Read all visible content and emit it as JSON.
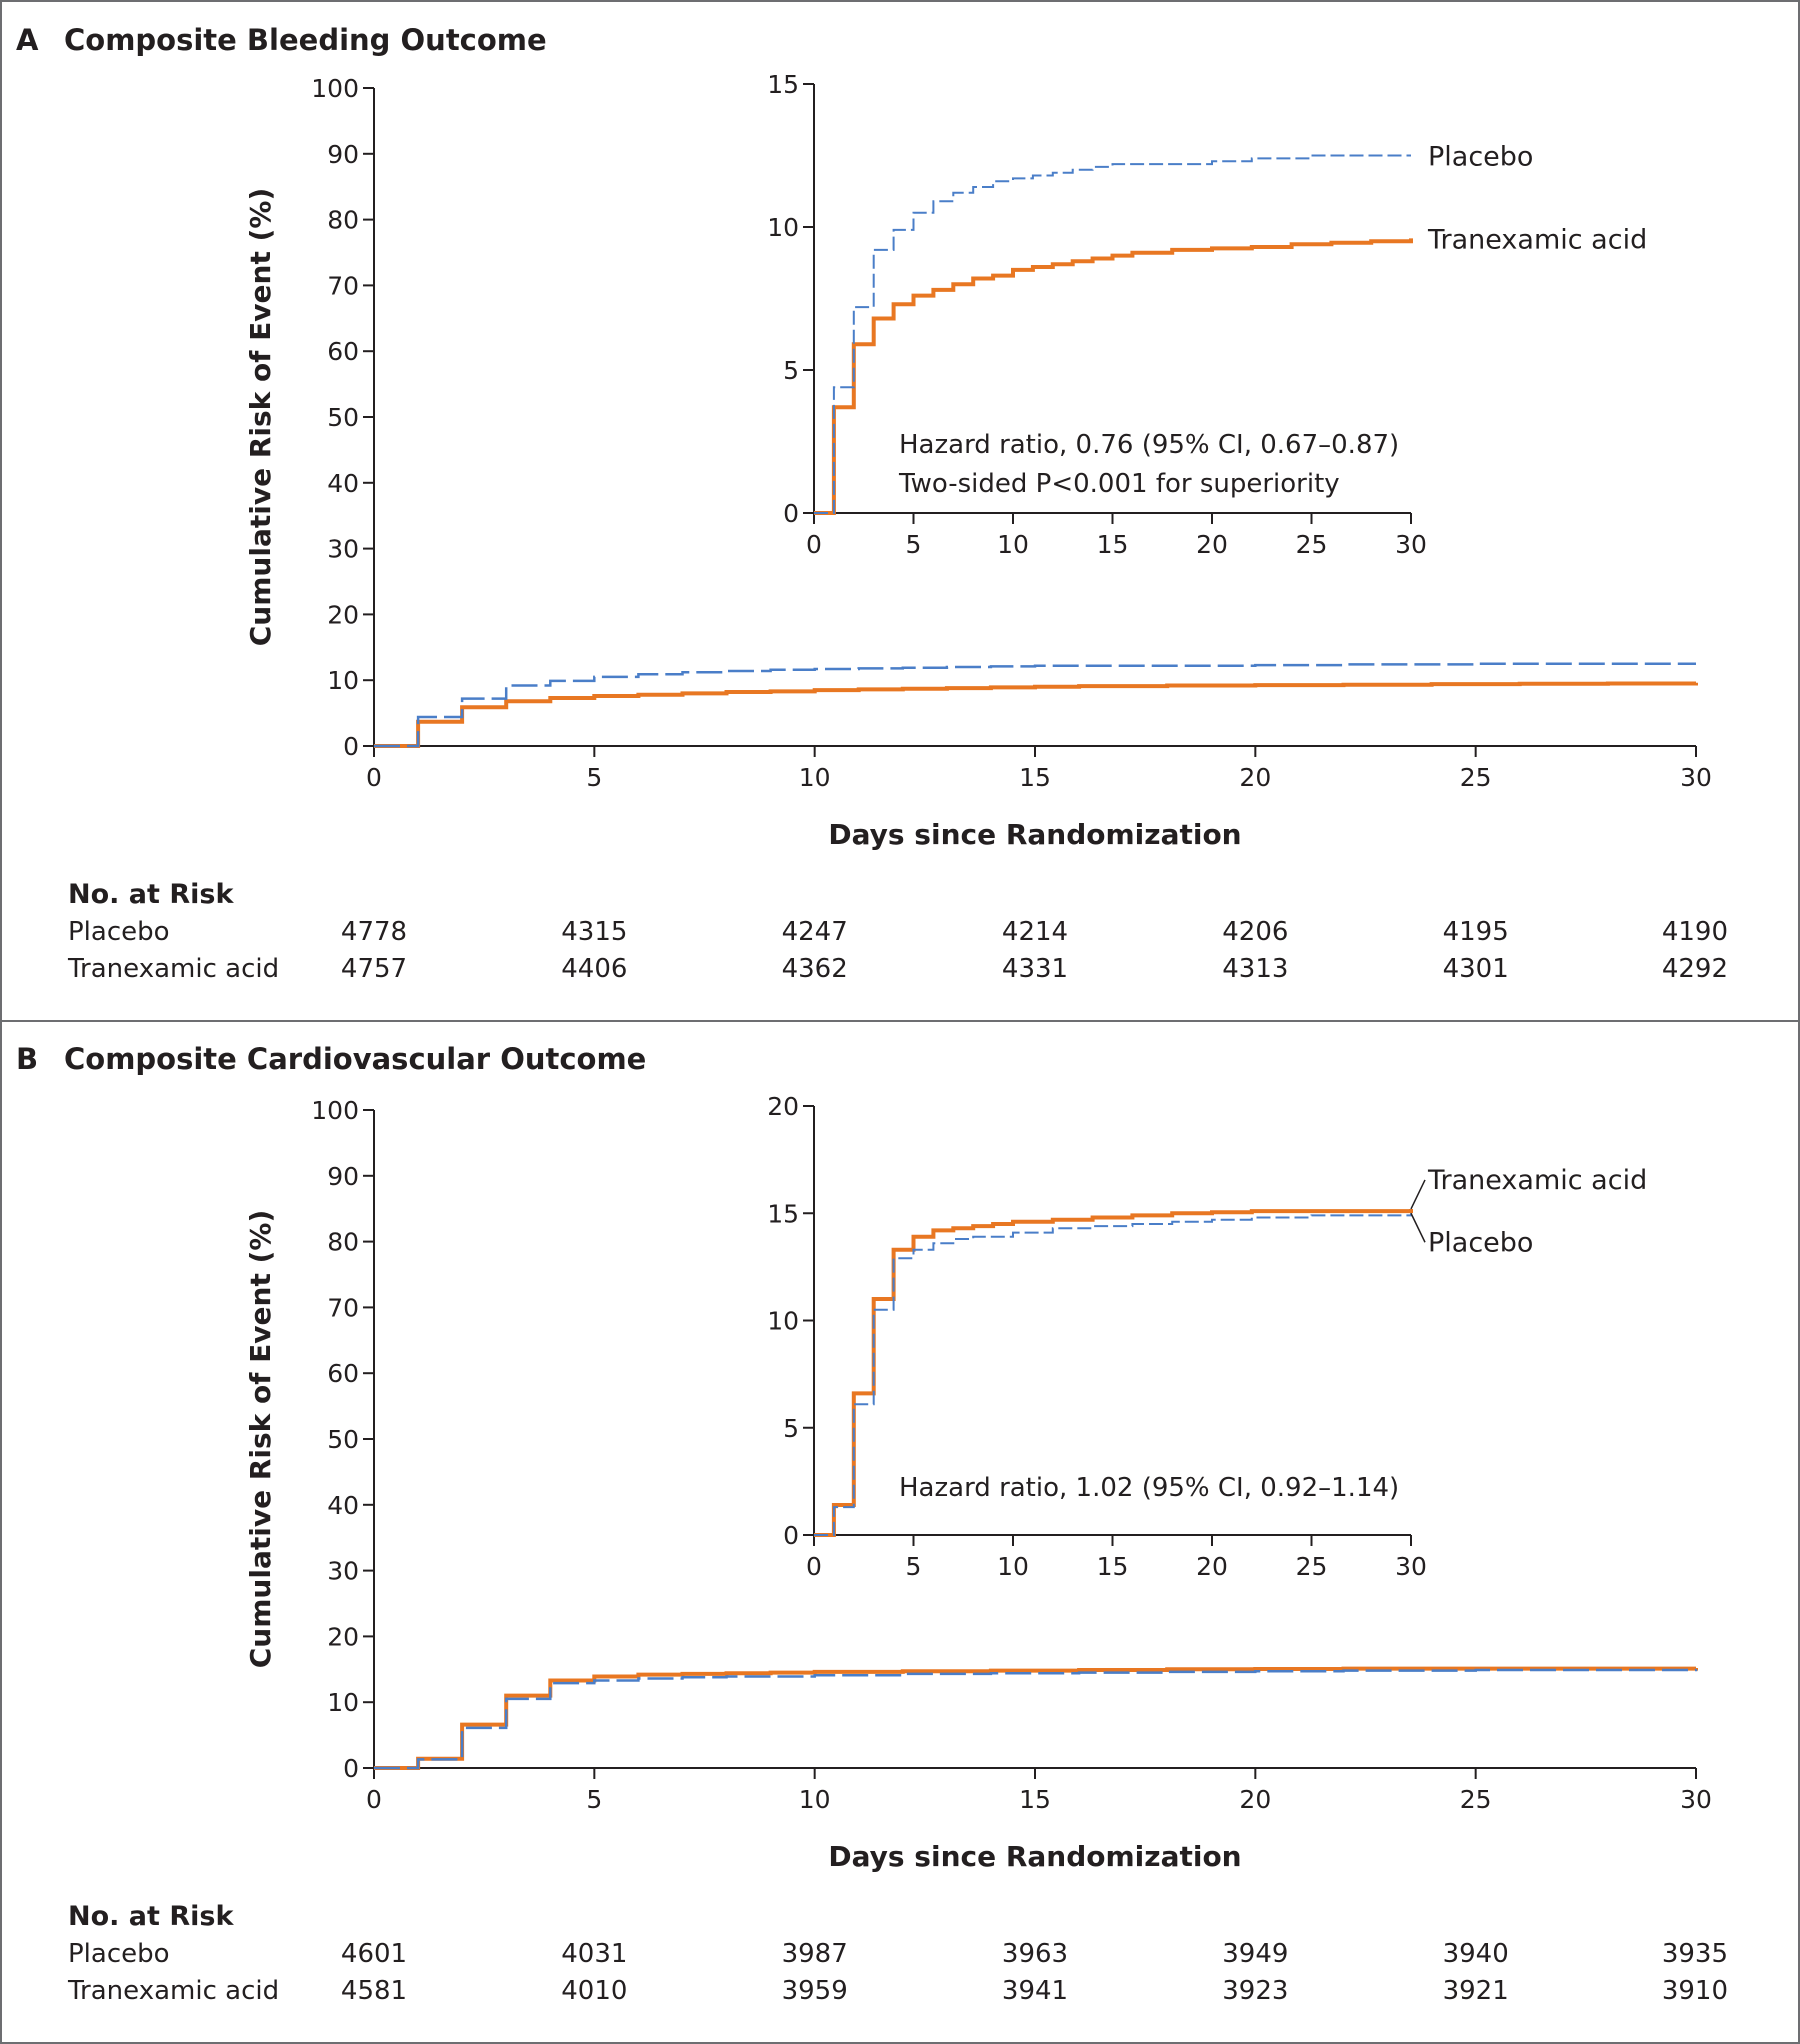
{
  "colors": {
    "placebo": "#4a7ec8",
    "tranexamic": "#e87722",
    "axis": "#231f20",
    "frame": "#6d6e71"
  },
  "chart_data": [
    {
      "panel": "A",
      "title": "Composite Bleeding Outcome",
      "type": "line",
      "xlabel": "Days since Randomization",
      "ylabel": "Cumulative Risk of Event (%)",
      "xlim": [
        0,
        30
      ],
      "ylim": [
        0,
        100
      ],
      "xticks": [
        0,
        5,
        10,
        15,
        20,
        25,
        30
      ],
      "yticks": [
        0,
        10,
        20,
        30,
        40,
        50,
        60,
        70,
        80,
        90,
        100
      ],
      "series": [
        {
          "name": "Placebo",
          "style": "dashed",
          "x": [
            0,
            1,
            2,
            3,
            4,
            5,
            6,
            7,
            8,
            9,
            10,
            11,
            12,
            13,
            14,
            15,
            17,
            20,
            22,
            25,
            30
          ],
          "y": [
            0,
            4.4,
            7.2,
            9.2,
            9.9,
            10.5,
            10.9,
            11.2,
            11.4,
            11.6,
            11.7,
            11.8,
            11.9,
            12.0,
            12.1,
            12.2,
            12.2,
            12.3,
            12.4,
            12.5,
            12.5
          ]
        },
        {
          "name": "Tranexamic acid",
          "style": "solid",
          "x": [
            0,
            1,
            2,
            3,
            4,
            5,
            6,
            7,
            8,
            9,
            10,
            11,
            12,
            13,
            14,
            15,
            16,
            18,
            20,
            22,
            24,
            26,
            28,
            30
          ],
          "y": [
            0,
            3.7,
            5.9,
            6.8,
            7.3,
            7.6,
            7.8,
            8.0,
            8.2,
            8.3,
            8.5,
            8.6,
            8.7,
            8.8,
            8.9,
            9.0,
            9.1,
            9.2,
            9.25,
            9.3,
            9.4,
            9.45,
            9.5,
            9.6
          ]
        }
      ],
      "inset": {
        "xlim": [
          0,
          30
        ],
        "ylim": [
          0,
          15
        ],
        "xticks": [
          0,
          5,
          10,
          15,
          20,
          25,
          30
        ],
        "yticks": [
          0,
          5,
          10,
          15
        ],
        "annotations": [
          "Hazard ratio, 0.76 (95% CI, 0.67–0.87)",
          "Two-sided P<0.001 for superiority"
        ],
        "legend": [
          "Placebo",
          "Tranexamic acid"
        ]
      },
      "risk_table": {
        "heading": "No. at Risk",
        "rows": [
          {
            "label": "Placebo",
            "values": [
              "4778",
              "4315",
              "4247",
              "4214",
              "4206",
              "4195",
              "4190"
            ]
          },
          {
            "label": "Tranexamic acid",
            "values": [
              "4757",
              "4406",
              "4362",
              "4331",
              "4313",
              "4301",
              "4292"
            ]
          }
        ]
      }
    },
    {
      "panel": "B",
      "title": "Composite Cardiovascular Outcome",
      "type": "line",
      "xlabel": "Days since Randomization",
      "ylabel": "Cumulative Risk of Event (%)",
      "xlim": [
        0,
        30
      ],
      "ylim": [
        0,
        100
      ],
      "xticks": [
        0,
        5,
        10,
        15,
        20,
        25,
        30
      ],
      "yticks": [
        0,
        10,
        20,
        30,
        40,
        50,
        60,
        70,
        80,
        90,
        100
      ],
      "series": [
        {
          "name": "Placebo",
          "style": "dashed",
          "x": [
            0,
            1,
            2,
            3,
            4,
            5,
            6,
            7,
            8,
            10,
            12,
            14,
            16,
            18,
            20,
            22,
            25,
            30
          ],
          "y": [
            0,
            1.3,
            6.1,
            10.5,
            12.9,
            13.3,
            13.6,
            13.8,
            13.9,
            14.1,
            14.3,
            14.4,
            14.5,
            14.6,
            14.7,
            14.8,
            14.9,
            15.0
          ]
        },
        {
          "name": "Tranexamic acid",
          "style": "solid",
          "x": [
            0,
            1,
            2,
            3,
            4,
            5,
            6,
            7,
            8,
            9,
            10,
            12,
            14,
            16,
            18,
            20,
            22,
            25,
            30
          ],
          "y": [
            0,
            1.4,
            6.6,
            11.0,
            13.3,
            13.9,
            14.2,
            14.3,
            14.4,
            14.5,
            14.6,
            14.7,
            14.8,
            14.9,
            15.0,
            15.05,
            15.1,
            15.1,
            15.2
          ]
        }
      ],
      "inset": {
        "xlim": [
          0,
          30
        ],
        "ylim": [
          0,
          20
        ],
        "xticks": [
          0,
          5,
          10,
          15,
          20,
          25,
          30
        ],
        "yticks": [
          0,
          5,
          10,
          15,
          20
        ],
        "annotations": [
          "Hazard ratio, 1.02 (95% CI, 0.92–1.14)"
        ],
        "legend": [
          "Tranexamic acid",
          "Placebo"
        ]
      },
      "risk_table": {
        "heading": "No. at Risk",
        "rows": [
          {
            "label": "Placebo",
            "values": [
              "4601",
              "4031",
              "3987",
              "3963",
              "3949",
              "3940",
              "3935"
            ]
          },
          {
            "label": "Tranexamic acid",
            "values": [
              "4581",
              "4010",
              "3959",
              "3941",
              "3923",
              "3921",
              "3910"
            ]
          }
        ]
      }
    }
  ]
}
